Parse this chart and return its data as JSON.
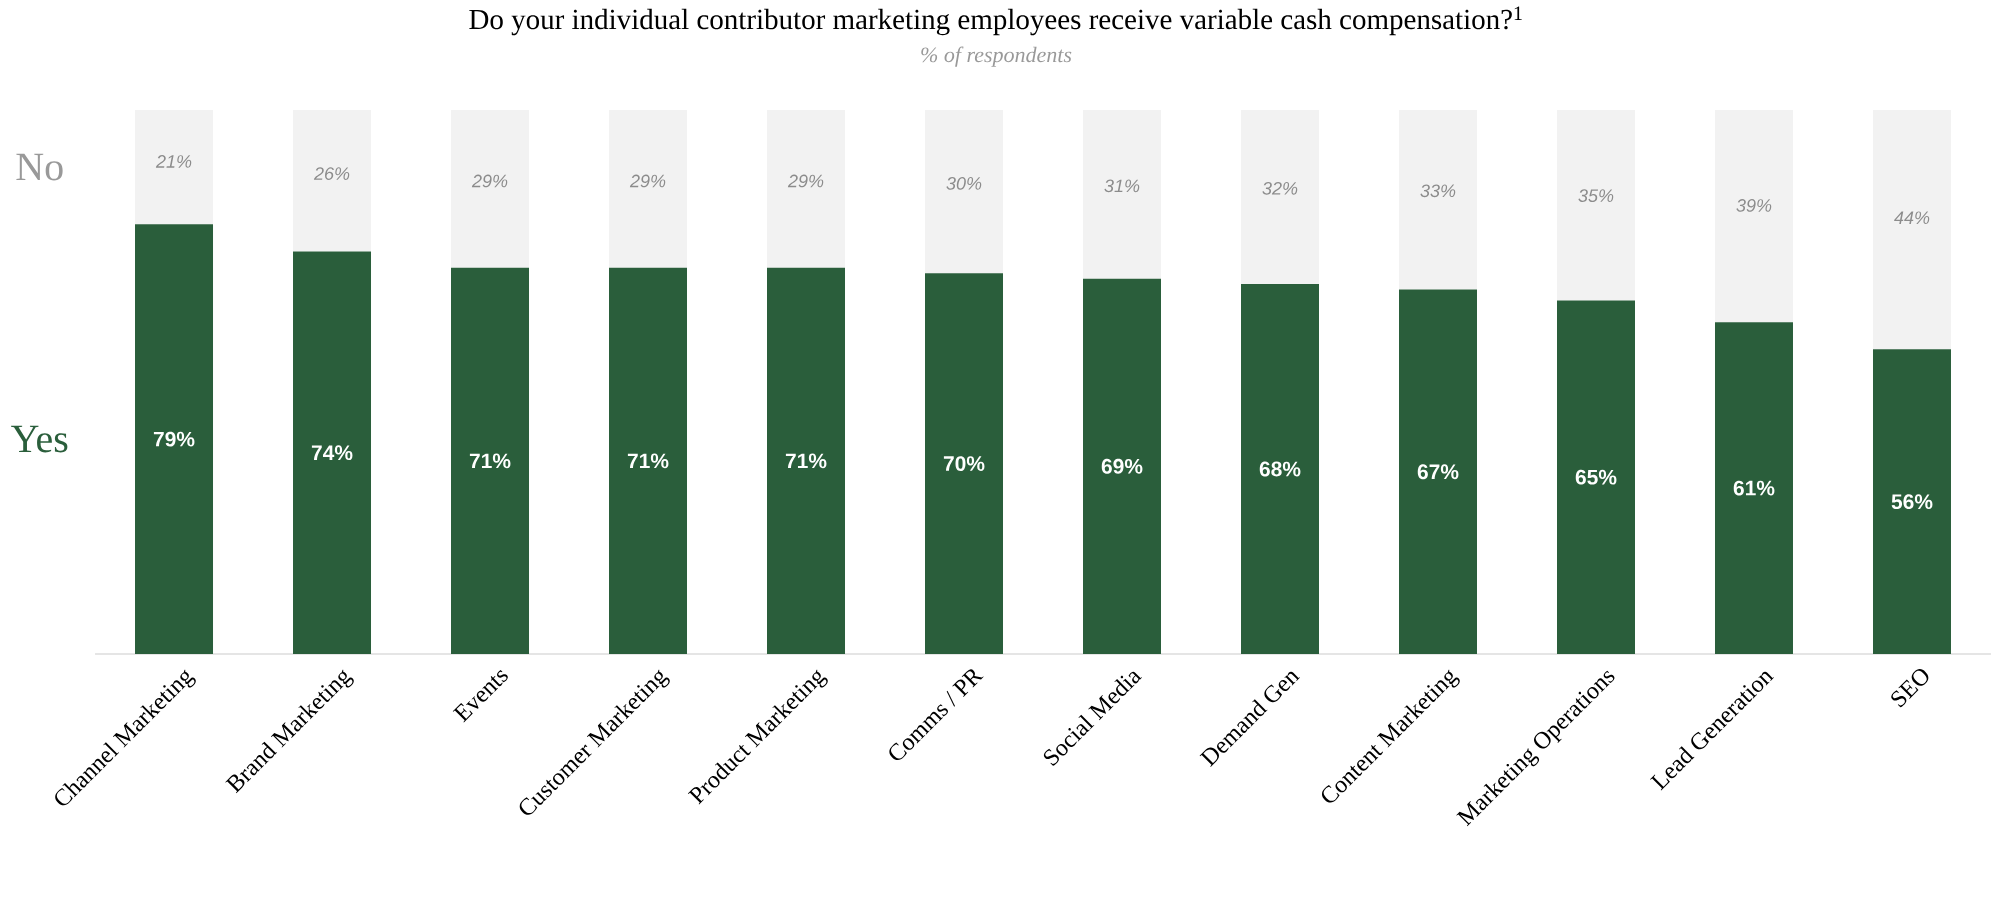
{
  "chart_data": {
    "type": "bar",
    "stacked": true,
    "title": "Do your individual contributor marketing employees receive variable cash compensation?$^{1}$",
    "subtitle": "% of respondents",
    "categories": [
      "Channel Marketing",
      "Brand Marketing",
      "Events",
      "Customer Marketing",
      "Product Marketing",
      "Comms / PR",
      "Social Media",
      "Demand Gen",
      "Content Marketing",
      "Marketing Operations",
      "Lead Generation",
      "SEO"
    ],
    "series": [
      {
        "name": "Yes",
        "color": "#2a5e3b",
        "values": [
          79,
          74,
          71,
          71,
          71,
          70,
          69,
          68,
          67,
          65,
          61,
          56
        ],
        "value_labels": [
          "79%",
          "74%",
          "71%",
          "71%",
          "71%",
          "70%",
          "69%",
          "68%",
          "67%",
          "65%",
          "61%",
          "56%"
        ]
      },
      {
        "name": "No",
        "color": "#f2f2f2",
        "values": [
          21,
          26,
          29,
          29,
          29,
          30,
          31,
          32,
          33,
          35,
          39,
          44
        ],
        "value_labels": [
          "21%",
          "26%",
          "29%",
          "29%",
          "29%",
          "30%",
          "31%",
          "32%",
          "33%",
          "35%",
          "39%",
          "44%"
        ]
      }
    ]
  }
}
